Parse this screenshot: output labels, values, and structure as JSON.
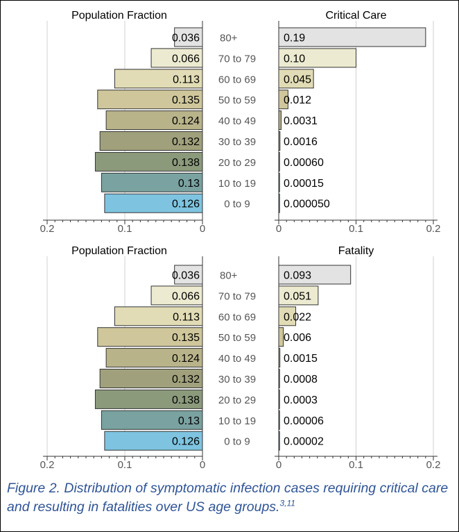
{
  "chart_data": [
    {
      "type": "bar",
      "title": "Population Fraction",
      "categories": [
        "80+",
        "70 to 79",
        "60 to 69",
        "50 to 59",
        "40 to 49",
        "30 to 39",
        "20 to 29",
        "10 to 19",
        "0 to 9"
      ],
      "values": [
        0.036,
        0.066,
        0.113,
        0.135,
        0.124,
        0.132,
        0.138,
        0.13,
        0.126
      ],
      "value_labels": [
        "0.036",
        "0.066",
        "0.113",
        "0.135",
        "0.124",
        "0.132",
        "0.138",
        "0.13",
        "0.126"
      ],
      "xlim": [
        0.2,
        0
      ],
      "xticks": [
        "0.2",
        "0.1",
        "0"
      ],
      "orientation": "horizontal-reversed"
    },
    {
      "type": "bar",
      "title": "Critical Care",
      "categories": [
        "80+",
        "70 to 79",
        "60 to 69",
        "50 to 59",
        "40 to 49",
        "30 to 39",
        "20 to 29",
        "10 to 19",
        "0 to 9"
      ],
      "values": [
        0.19,
        0.1,
        0.045,
        0.012,
        0.0031,
        0.0016,
        0.0006,
        0.00015,
        5e-05
      ],
      "value_labels": [
        "0.19",
        "0.10",
        "0.045",
        "0.012",
        "0.0031",
        "0.0016",
        "0.00060",
        "0.00015",
        "0.000050"
      ],
      "xlim": [
        0,
        0.2
      ],
      "xticks": [
        "0",
        "0.1",
        "0.2"
      ],
      "orientation": "horizontal"
    },
    {
      "type": "bar",
      "title": "Population Fraction",
      "categories": [
        "80+",
        "70 to 79",
        "60 to 69",
        "50 to 59",
        "40 to 49",
        "30 to 39",
        "20 to 29",
        "10 to 19",
        "0 to 9"
      ],
      "values": [
        0.036,
        0.066,
        0.113,
        0.135,
        0.124,
        0.132,
        0.138,
        0.13,
        0.126
      ],
      "value_labels": [
        "0.036",
        "0.066",
        "0.113",
        "0.135",
        "0.124",
        "0.132",
        "0.138",
        "0.13",
        "0.126"
      ],
      "xlim": [
        0.2,
        0
      ],
      "xticks": [
        "0.2",
        "0.1",
        "0"
      ],
      "orientation": "horizontal-reversed"
    },
    {
      "type": "bar",
      "title": "Fatality",
      "categories": [
        "80+",
        "70 to 79",
        "60 to 69",
        "50 to 59",
        "40 to 49",
        "30 to 39",
        "20 to 29",
        "10 to 19",
        "0 to 9"
      ],
      "values": [
        0.093,
        0.051,
        0.022,
        0.006,
        0.0015,
        0.0008,
        0.0003,
        6e-05,
        2e-05
      ],
      "value_labels": [
        "0.093",
        "0.051",
        "0.022",
        "0.006",
        "0.0015",
        "0.0008",
        "0.0003",
        "0.00006",
        "0.00002"
      ],
      "xlim": [
        0,
        0.2
      ],
      "xticks": [
        "0",
        "0.1",
        "0.2"
      ],
      "orientation": "horizontal"
    }
  ],
  "colors": {
    "age_bars": [
      "#e3e3e3",
      "#ecead0",
      "#e1dcb5",
      "#cfc79b",
      "#b9b38a",
      "#a0a07c",
      "#8c9a7c",
      "#79a2a0",
      "#7ec4e0"
    ],
    "right_bars": [
      "#e3e3e3",
      "#ecead0",
      "#e1dcb5",
      "#cfc79b",
      "#b9b38a",
      "#a0a07c",
      "#8c9a7c",
      "#79a2a0",
      "#7ec4e0"
    ],
    "gridline": "#d0d0d0",
    "caption": "#2f5496"
  },
  "caption": {
    "text": "Figure 2.  Distribution of symptomatic infection cases requiring critical care and resulting in fatalities over US age groups.",
    "refs": "3,11"
  }
}
